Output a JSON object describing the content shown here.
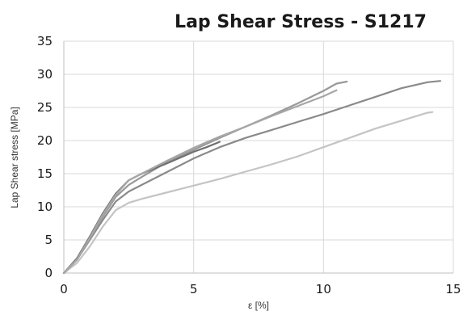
{
  "chart_data": {
    "type": "line",
    "title": "Lap Shear Stress - S1217",
    "xlabel": "ε [%]",
    "ylabel": "Lap Shear stress [MPa]",
    "xlim": [
      0,
      15
    ],
    "ylim": [
      0,
      35
    ],
    "xticks": [
      "0",
      "5",
      "10",
      "15"
    ],
    "yticks": [
      "0",
      "5",
      "10",
      "15",
      "20",
      "25",
      "30",
      "35"
    ],
    "grid": true,
    "legend": "none",
    "series": [
      {
        "color": "#c4c4c4",
        "points": [
          [
            0,
            0
          ],
          [
            0.5,
            1.5
          ],
          [
            1,
            4
          ],
          [
            1.5,
            7
          ],
          [
            2,
            9.5
          ],
          [
            2.5,
            10.6
          ],
          [
            3,
            11.2
          ],
          [
            4,
            12.2
          ],
          [
            5,
            13.2
          ],
          [
            6,
            14.2
          ],
          [
            7,
            15.3
          ],
          [
            8,
            16.4
          ],
          [
            9,
            17.6
          ],
          [
            10,
            19
          ],
          [
            11,
            20.4
          ],
          [
            12,
            21.8
          ],
          [
            13,
            23
          ],
          [
            14,
            24.2
          ],
          [
            14.2,
            24.3
          ]
        ]
      },
      {
        "color": "#8a8a8a",
        "points": [
          [
            0,
            0
          ],
          [
            0.5,
            2
          ],
          [
            1,
            5
          ],
          [
            1.5,
            8
          ],
          [
            2,
            10.8
          ],
          [
            2.5,
            12.3
          ],
          [
            3,
            13.3
          ],
          [
            4,
            15.3
          ],
          [
            5,
            17.3
          ],
          [
            6,
            19
          ],
          [
            7,
            20.4
          ],
          [
            8,
            21.6
          ],
          [
            9,
            22.8
          ],
          [
            10,
            24
          ],
          [
            11,
            25.3
          ],
          [
            12,
            26.6
          ],
          [
            13,
            27.9
          ],
          [
            14,
            28.8
          ],
          [
            14.5,
            29
          ]
        ]
      },
      {
        "color": "#999999",
        "points": [
          [
            0,
            0
          ],
          [
            0.5,
            2
          ],
          [
            1,
            5.2
          ],
          [
            1.5,
            8.5
          ],
          [
            2,
            11.5
          ],
          [
            2.5,
            13.3
          ],
          [
            3,
            14.5
          ],
          [
            4,
            16.8
          ],
          [
            5,
            18.6
          ],
          [
            6,
            20.4
          ],
          [
            7,
            22.1
          ],
          [
            8,
            23.8
          ],
          [
            9,
            25.6
          ],
          [
            10,
            27.5
          ],
          [
            10.5,
            28.6
          ],
          [
            10.9,
            28.9
          ]
        ]
      },
      {
        "color": "#707070",
        "points": [
          [
            0,
            0
          ],
          [
            0.5,
            2.2
          ],
          [
            1,
            5.5
          ],
          [
            1.5,
            9
          ],
          [
            2,
            12
          ],
          [
            2.5,
            14
          ],
          [
            3,
            15
          ],
          [
            4,
            16.6
          ],
          [
            5,
            18.3
          ],
          [
            5.5,
            19
          ],
          [
            6,
            19.8
          ]
        ]
      },
      {
        "color": "#a6a6a6",
        "points": [
          [
            0,
            0
          ],
          [
            0.5,
            2
          ],
          [
            1,
            5.3
          ],
          [
            1.5,
            8.8
          ],
          [
            2,
            11.8
          ],
          [
            2.5,
            14
          ],
          [
            3,
            15
          ],
          [
            4,
            17
          ],
          [
            5,
            18.9
          ],
          [
            6,
            20.6
          ],
          [
            7,
            22.1
          ],
          [
            8,
            23.7
          ],
          [
            9,
            25.2
          ],
          [
            10,
            26.7
          ],
          [
            10.5,
            27.6
          ]
        ]
      }
    ]
  }
}
